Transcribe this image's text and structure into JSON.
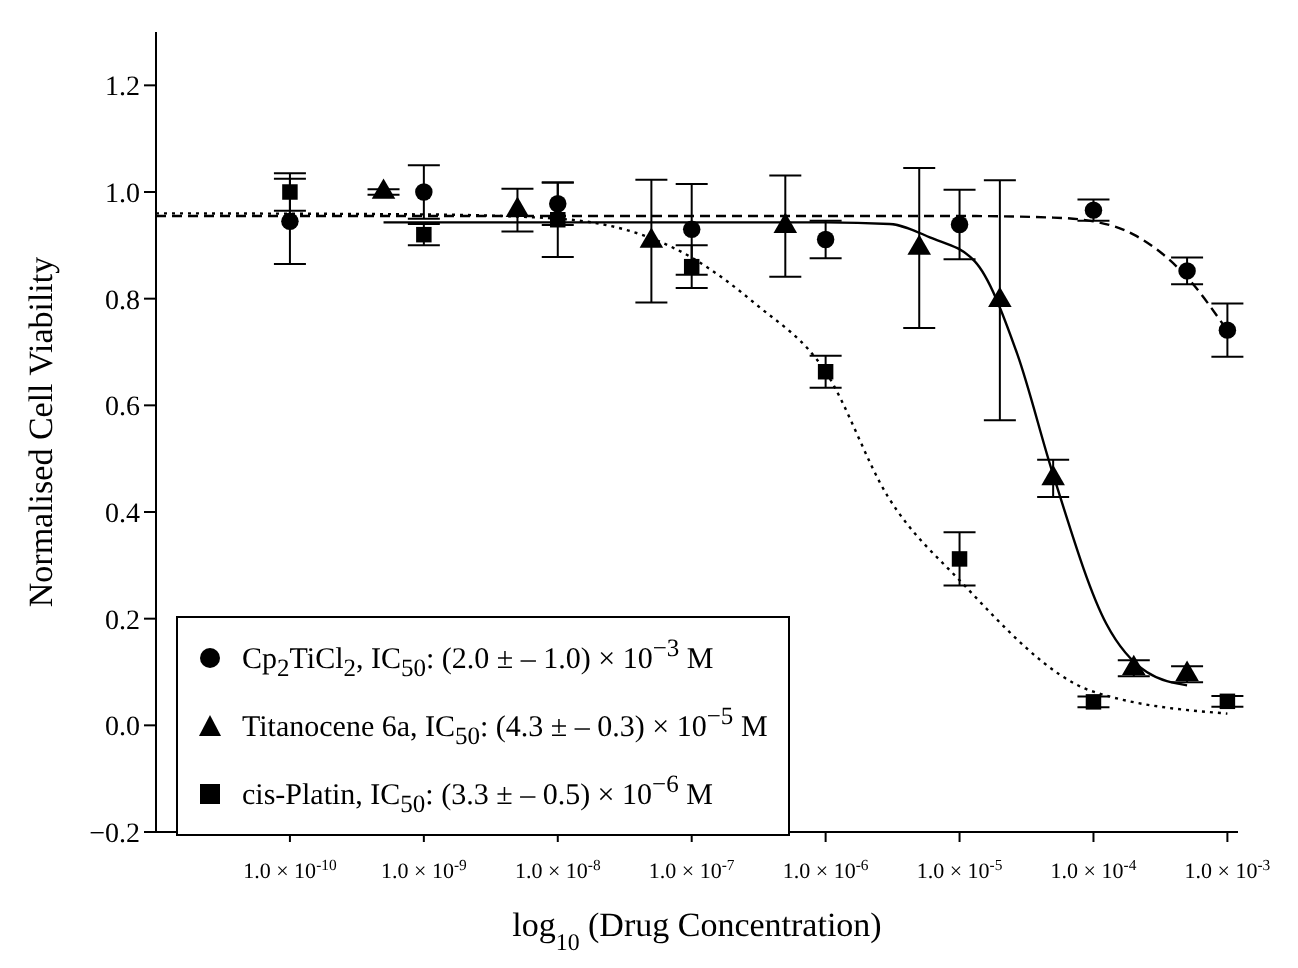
{
  "chart_data": {
    "type": "scatter",
    "xlabel": "log$_{10}$ (Drug Concentration)",
    "ylabel": "Normalised Cell Viability",
    "log": "x",
    "xlim": [
      1e-11,
      0.0012
    ],
    "xticks": [
      {
        "value": 1e-10,
        "label": "1.0 × 10$^{-10}$"
      },
      {
        "value": 1e-09,
        "label": "1.0 × 10$^{-9}$"
      },
      {
        "value": 1e-08,
        "label": "1.0 × 10$^{-8}$"
      },
      {
        "value": 1e-07,
        "label": "1.0 × 10$^{-7}$"
      },
      {
        "value": 1e-06,
        "label": "1.0 × 10$^{-6}$"
      },
      {
        "value": 1e-05,
        "label": "1.0 × 10$^{-5}$"
      },
      {
        "value": 0.0001,
        "label": "1.0 × 10$^{-4}$"
      },
      {
        "value": 0.001,
        "label": "1.0 × 10$^{-3}$"
      }
    ],
    "ylim": [
      -0.2,
      1.3
    ],
    "yticks": [
      {
        "value": -0.2,
        "label": "−0.2"
      },
      {
        "value": 0,
        "label": "0.0"
      },
      0.2,
      0.4,
      0.6,
      0.8,
      {
        "value": 1,
        "label": "1.0"
      },
      1.2
    ],
    "legend": "bottom left",
    "series": [
      {
        "name": "Cp$_{2}$TiCl$_{2}$, IC$_{50}$: (2.0 ± – 1.0) × 10$^{−3}$ M",
        "color": "#000000",
        "marker": "circle",
        "x": [
          1e-10,
          1e-09,
          1e-08,
          1e-07,
          1e-06,
          1e-05,
          0.0001,
          0.0005,
          0.001
        ],
        "values": [
          0.945,
          1.0,
          0.978,
          0.93,
          0.911,
          0.939,
          0.966,
          0.852,
          0.741
        ],
        "errors": [
          0.08,
          0.05,
          0.04,
          0.085,
          0.035,
          0.065,
          0.02,
          0.025,
          0.05
        ]
      },
      {
        "name": "Titanocene 6a, IC$_{50}$: (4.3 ± – 0.3) × 10$^{−5}$ M",
        "color": "#000000",
        "marker": "triangle",
        "x": [
          5e-10,
          5e-09,
          5e-08,
          5e-07,
          5e-06,
          2e-05,
          5e-05,
          0.0002,
          0.0005
        ],
        "values": [
          1.0,
          0.966,
          0.908,
          0.936,
          0.895,
          0.797,
          0.463,
          0.107,
          0.096
        ],
        "errors": [
          0.005,
          0.04,
          0.115,
          0.095,
          0.15,
          0.225,
          0.035,
          0.015,
          0.015
        ]
      },
      {
        "name": "cis-Platin, IC$_{50}$: (3.3 ± – 0.5) × 10$^{−6}$ M",
        "color": "#000000",
        "marker": "square",
        "x": [
          1e-10,
          1e-09,
          1e-08,
          1e-07,
          1e-06,
          1e-05,
          0.0001,
          0.001
        ],
        "values": [
          1.0,
          0.92,
          0.948,
          0.86,
          0.663,
          0.312,
          0.044,
          0.045
        ],
        "errors": [
          0.035,
          0.02,
          0.07,
          0.04,
          0.03,
          0.05,
          0.01,
          0.01
        ]
      },
      {
        "type": "line",
        "color": "#000000",
        "marker": "none",
        "line_style": "dashed",
        "x": [
          1e-11,
          1e-06,
          1e-05,
          5e-05,
          0.0001,
          0.0002,
          0.0005,
          0.001
        ],
        "values": [
          0.955,
          0.955,
          0.955,
          0.952,
          0.945,
          0.92,
          0.84,
          0.74
        ]
      },
      {
        "type": "line",
        "color": "#000000",
        "marker": "none",
        "line_style": "solid",
        "x": [
          5e-10,
          1e-06,
          3e-06,
          6e-06,
          1.3e-05,
          2.7e-05,
          5e-05,
          0.000125,
          0.00025,
          0.0005
        ],
        "values": [
          0.943,
          0.943,
          0.94,
          0.915,
          0.87,
          0.696,
          0.47,
          0.19,
          0.1,
          0.075
        ]
      },
      {
        "type": "line",
        "color": "#000000",
        "marker": "none",
        "line_style": "dotted",
        "x": [
          1e-11,
          1e-09,
          1e-08,
          1e-07,
          3e-07,
          1e-06,
          2.9e-06,
          1e-05,
          0.0001,
          0.001
        ],
        "values": [
          0.96,
          0.958,
          0.95,
          0.877,
          0.79,
          0.663,
          0.43,
          0.272,
          0.063,
          0.022
        ]
      }
    ]
  }
}
